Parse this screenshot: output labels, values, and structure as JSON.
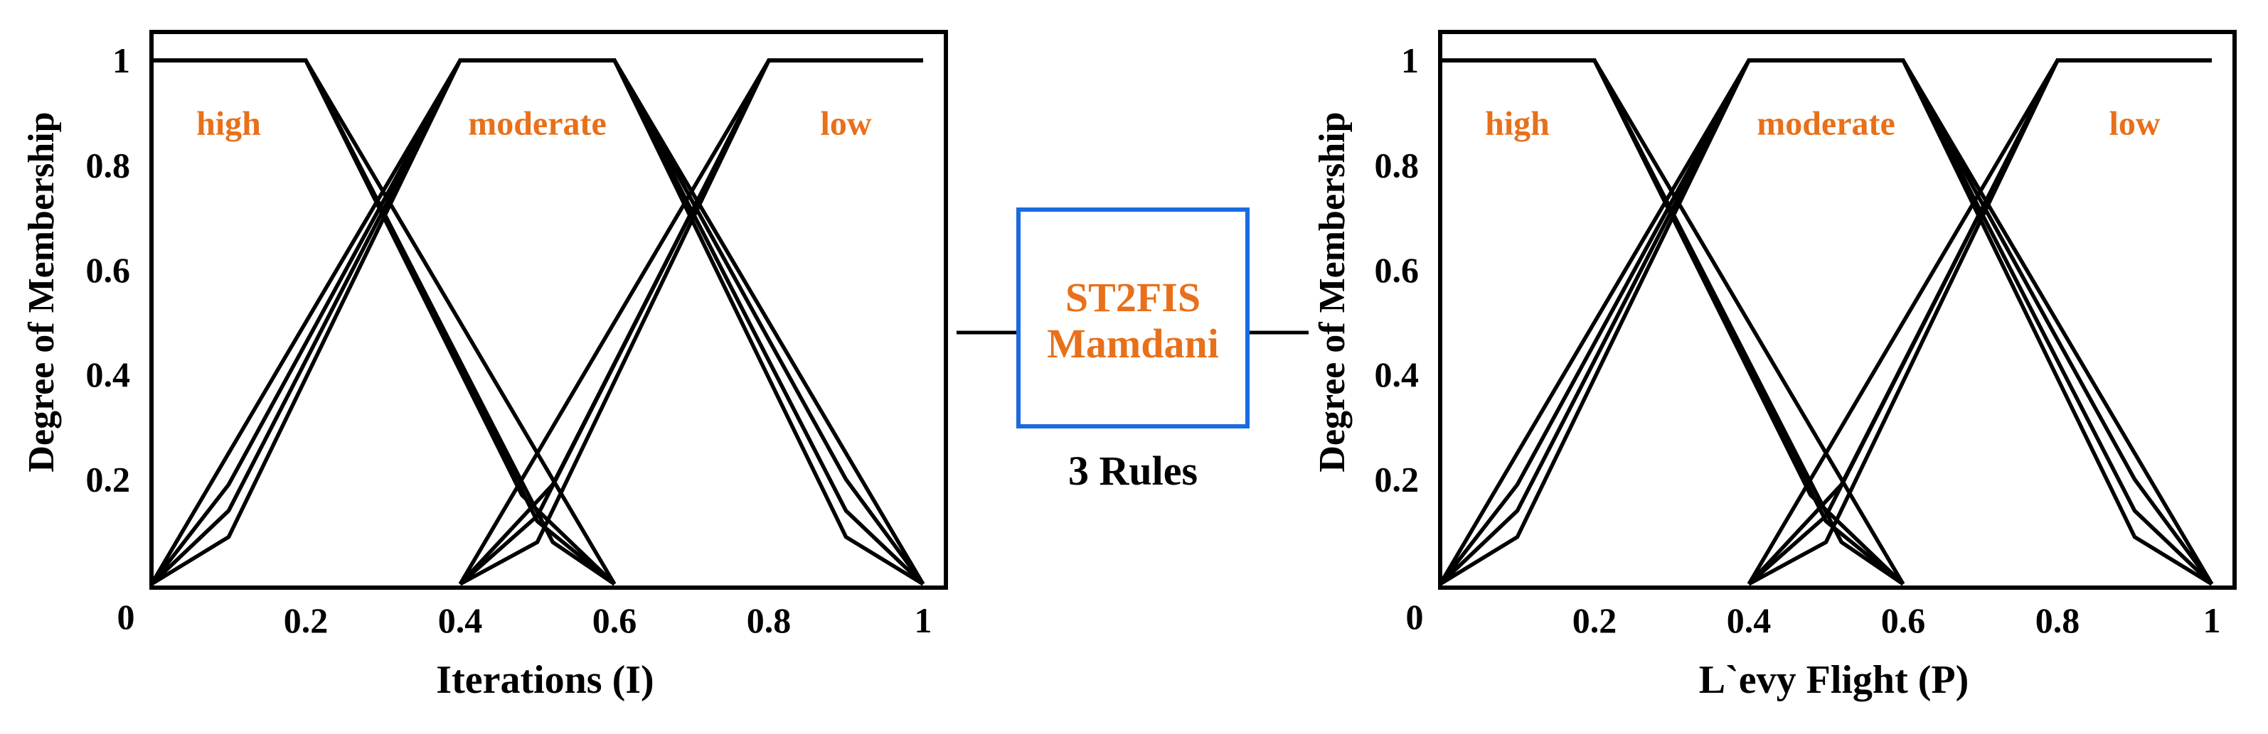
{
  "colors": {
    "set_label": "#e8701a",
    "box_border": "#1a6be0",
    "box_text": "#e8701a",
    "curve": "#000000"
  },
  "center": {
    "line1": "ST2FIS",
    "line2": "Mamdani",
    "rules": "3 Rules"
  },
  "chart_data": [
    {
      "type": "line",
      "xlabel": "Iterations  (I)",
      "ylabel": "Degree of Membership",
      "xlim": [
        0,
        1
      ],
      "ylim": [
        0,
        1
      ],
      "x_ticks": [
        {
          "value": 0,
          "label": "0"
        },
        {
          "value": 0.2,
          "label": "0.2"
        },
        {
          "value": 0.4,
          "label": "0.4"
        },
        {
          "value": 0.6,
          "label": "0.6"
        },
        {
          "value": 0.8,
          "label": "0.8"
        },
        {
          "value": 1,
          "label": "1"
        }
      ],
      "y_ticks": [
        {
          "value": 0.2,
          "label": "0.2"
        },
        {
          "value": 0.4,
          "label": "0.4"
        },
        {
          "value": 0.6,
          "label": "0.6"
        },
        {
          "value": 0.8,
          "label": "0.8"
        },
        {
          "value": 1,
          "label": "1"
        }
      ],
      "sets": [
        {
          "name": "high",
          "label_at": [
            0.1,
            0.88
          ]
        },
        {
          "name": "moderate",
          "label_at": [
            0.5,
            0.88
          ]
        },
        {
          "name": "low",
          "label_at": [
            0.9,
            0.88
          ]
        }
      ],
      "series": [
        {
          "x": [
            0,
            0.2,
            0.6
          ],
          "y": [
            1,
            1,
            0
          ]
        },
        {
          "x": [
            0,
            0.2,
            0.52,
            0.6
          ],
          "y": [
            1,
            1,
            0.08,
            0
          ]
        },
        {
          "x": [
            0,
            0.2,
            0.5,
            0.6
          ],
          "y": [
            1,
            1,
            0.12,
            0
          ]
        },
        {
          "x": [
            0,
            0.2,
            0.48,
            0.6
          ],
          "y": [
            1,
            1,
            0.17,
            0
          ]
        },
        {
          "x": [
            0,
            0.4,
            0.6,
            1
          ],
          "y": [
            0,
            1,
            1,
            0
          ]
        },
        {
          "x": [
            0,
            0.1,
            0.4,
            0.6,
            0.9,
            1
          ],
          "y": [
            0,
            0.19,
            1,
            1,
            0.2,
            0
          ]
        },
        {
          "x": [
            0,
            0.1,
            0.4,
            0.6,
            0.9,
            1
          ],
          "y": [
            0,
            0.14,
            1,
            1,
            0.14,
            0
          ]
        },
        {
          "x": [
            0,
            0.1,
            0.4,
            0.6,
            0.9,
            1
          ],
          "y": [
            0,
            0.09,
            1,
            1,
            0.09,
            0
          ]
        },
        {
          "x": [
            0.4,
            0.8,
            1
          ],
          "y": [
            0,
            1,
            1
          ]
        },
        {
          "x": [
            0.4,
            0.5,
            0.8,
            1
          ],
          "y": [
            0,
            0.08,
            1,
            1
          ]
        },
        {
          "x": [
            0.4,
            0.5,
            0.8,
            1
          ],
          "y": [
            0,
            0.13,
            1,
            1
          ]
        },
        {
          "x": [
            0.4,
            0.52,
            0.8,
            1
          ],
          "y": [
            0,
            0.19,
            1,
            1
          ]
        }
      ]
    },
    {
      "type": "line",
      "xlabel": "L`evy Flight (P)",
      "ylabel": "Degree of Membership",
      "xlim": [
        0,
        1
      ],
      "ylim": [
        0,
        1
      ],
      "x_ticks": [
        {
          "value": 0,
          "label": "0"
        },
        {
          "value": 0.2,
          "label": "0.2"
        },
        {
          "value": 0.4,
          "label": "0.4"
        },
        {
          "value": 0.6,
          "label": "0.6"
        },
        {
          "value": 0.8,
          "label": "0.8"
        },
        {
          "value": 1,
          "label": "1"
        }
      ],
      "y_ticks": [
        {
          "value": 0.2,
          "label": "0.2"
        },
        {
          "value": 0.4,
          "label": "0.4"
        },
        {
          "value": 0.6,
          "label": "0.6"
        },
        {
          "value": 0.8,
          "label": "0.8"
        },
        {
          "value": 1,
          "label": "1"
        }
      ],
      "sets": [
        {
          "name": "high",
          "label_at": [
            0.1,
            0.88
          ]
        },
        {
          "name": "moderate",
          "label_at": [
            0.5,
            0.88
          ]
        },
        {
          "name": "low",
          "label_at": [
            0.9,
            0.88
          ]
        }
      ],
      "series": [
        {
          "x": [
            0,
            0.2,
            0.6
          ],
          "y": [
            1,
            1,
            0
          ]
        },
        {
          "x": [
            0,
            0.2,
            0.52,
            0.6
          ],
          "y": [
            1,
            1,
            0.08,
            0
          ]
        },
        {
          "x": [
            0,
            0.2,
            0.5,
            0.6
          ],
          "y": [
            1,
            1,
            0.12,
            0
          ]
        },
        {
          "x": [
            0,
            0.2,
            0.48,
            0.6
          ],
          "y": [
            1,
            1,
            0.17,
            0
          ]
        },
        {
          "x": [
            0,
            0.4,
            0.6,
            1
          ],
          "y": [
            0,
            1,
            1,
            0
          ]
        },
        {
          "x": [
            0,
            0.1,
            0.4,
            0.6,
            0.9,
            1
          ],
          "y": [
            0,
            0.19,
            1,
            1,
            0.2,
            0
          ]
        },
        {
          "x": [
            0,
            0.1,
            0.4,
            0.6,
            0.9,
            1
          ],
          "y": [
            0,
            0.14,
            1,
            1,
            0.14,
            0
          ]
        },
        {
          "x": [
            0,
            0.1,
            0.4,
            0.6,
            0.9,
            1
          ],
          "y": [
            0,
            0.09,
            1,
            1,
            0.09,
            0
          ]
        },
        {
          "x": [
            0.4,
            0.8,
            1
          ],
          "y": [
            0,
            1,
            1
          ]
        },
        {
          "x": [
            0.4,
            0.5,
            0.8,
            1
          ],
          "y": [
            0,
            0.08,
            1,
            1
          ]
        },
        {
          "x": [
            0.4,
            0.5,
            0.8,
            1
          ],
          "y": [
            0,
            0.13,
            1,
            1
          ]
        },
        {
          "x": [
            0.4,
            0.52,
            0.8,
            1
          ],
          "y": [
            0,
            0.19,
            1,
            1
          ]
        }
      ]
    }
  ]
}
